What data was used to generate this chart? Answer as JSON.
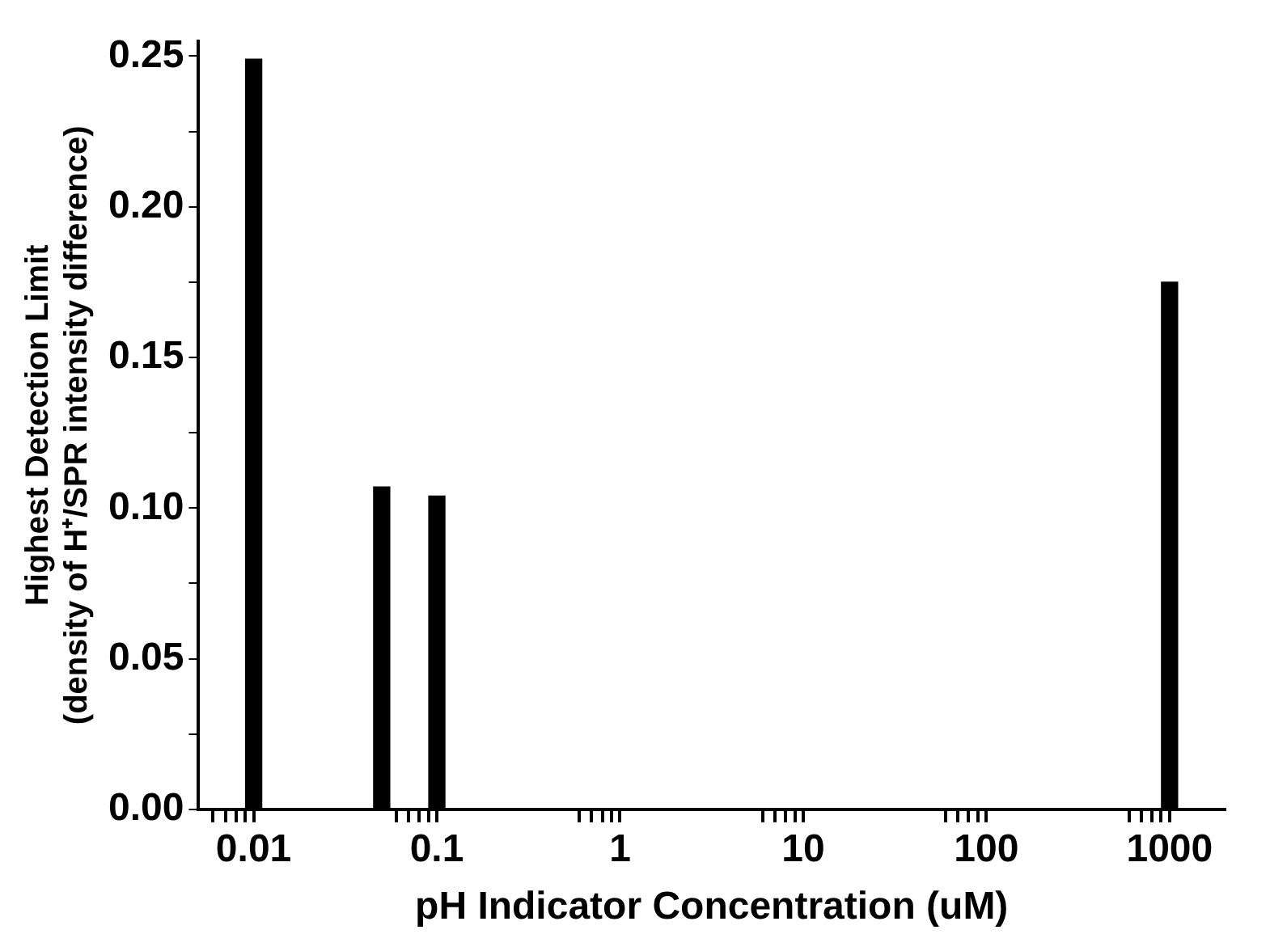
{
  "chart_data": {
    "type": "bar",
    "xlabel": "pH Indicator Concentration (uM)",
    "ylabel": "Highest Detection Limit\n(density of H⁺/SPR intensity difference)",
    "x": [
      0.01,
      0.05,
      0.1,
      1000
    ],
    "values": [
      0.249,
      0.107,
      0.104,
      0.175
    ],
    "color": "#000000",
    "log": "x",
    "xlim": [
      0.005,
      2000
    ],
    "xticks": [
      {
        "value": 0.006,
        "label": null
      },
      {
        "value": 0.007,
        "label": null
      },
      {
        "value": 0.008,
        "label": null
      },
      {
        "value": 0.009,
        "label": null
      },
      {
        "value": 0.01,
        "label": "0.01"
      },
      {
        "value": 0.06,
        "label": null
      },
      {
        "value": 0.07,
        "label": null
      },
      {
        "value": 0.08,
        "label": null
      },
      {
        "value": 0.09,
        "label": null
      },
      {
        "value": 0.1,
        "label": "0.1"
      },
      {
        "value": 0.6,
        "label": null
      },
      {
        "value": 0.7,
        "label": null
      },
      {
        "value": 0.8,
        "label": null
      },
      {
        "value": 0.9,
        "label": null
      },
      {
        "value": 1,
        "label": "1"
      },
      {
        "value": 6,
        "label": null
      },
      {
        "value": 7,
        "label": null
      },
      {
        "value": 8,
        "label": null
      },
      {
        "value": 9,
        "label": null
      },
      {
        "value": 10,
        "label": "10"
      },
      {
        "value": 60,
        "label": null
      },
      {
        "value": 70,
        "label": null
      },
      {
        "value": 80,
        "label": null
      },
      {
        "value": 90,
        "label": null
      },
      {
        "value": 100,
        "label": "100"
      },
      {
        "value": 600,
        "label": null
      },
      {
        "value": 700,
        "label": null
      },
      {
        "value": 800,
        "label": null
      },
      {
        "value": 900,
        "label": null
      },
      {
        "value": 1000,
        "label": "1000"
      }
    ],
    "ylim": [
      0,
      0.255
    ],
    "yticks": [
      {
        "value": 0,
        "label": "0.00"
      },
      {
        "value": 0.025,
        "label": null
      },
      {
        "value": 0.05,
        "label": "0.05"
      },
      {
        "value": 0.075,
        "label": null
      },
      {
        "value": 0.1,
        "label": "0.10"
      },
      {
        "value": 0.125,
        "label": null
      },
      {
        "value": 0.15,
        "label": "0.15"
      },
      {
        "value": 0.175,
        "label": null
      },
      {
        "value": 0.2,
        "label": "0.20"
      },
      {
        "value": 0.225,
        "label": null
      },
      {
        "value": 0.25,
        "label": "0.25"
      }
    ],
    "grid": false
  }
}
